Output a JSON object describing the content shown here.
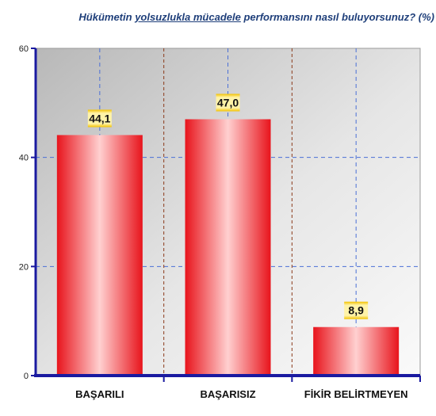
{
  "chart_data": {
    "type": "bar",
    "title": {
      "part1": "Hükümetin ",
      "underlined": "yolsuzlukla mücadele",
      "part2": " performansını nasıl buluyorsunuz? (%)"
    },
    "categories": [
      "BAŞARILI",
      "BAŞARISIZ",
      "FİKİR BELİRTMEYEN"
    ],
    "values": [
      44.1,
      47.0,
      8.9
    ],
    "value_labels": [
      "44,1",
      "47,0",
      "8,9"
    ],
    "ylim": [
      0,
      60
    ],
    "yticks": [
      0,
      20,
      40,
      60
    ],
    "grid": true,
    "legend": "none",
    "colors": {
      "bar_edge": "#e8141c",
      "bar_mid": "#ffd0d0",
      "axis": "#1a1aa0",
      "grid_h": "#4a6fd6",
      "grid_v_blue": "#4a6fd6",
      "grid_v_brown": "#8b3a1a",
      "label_bg": "#fff3a8",
      "label_edge": "#f2c200",
      "title": "#1f3f7a"
    }
  }
}
